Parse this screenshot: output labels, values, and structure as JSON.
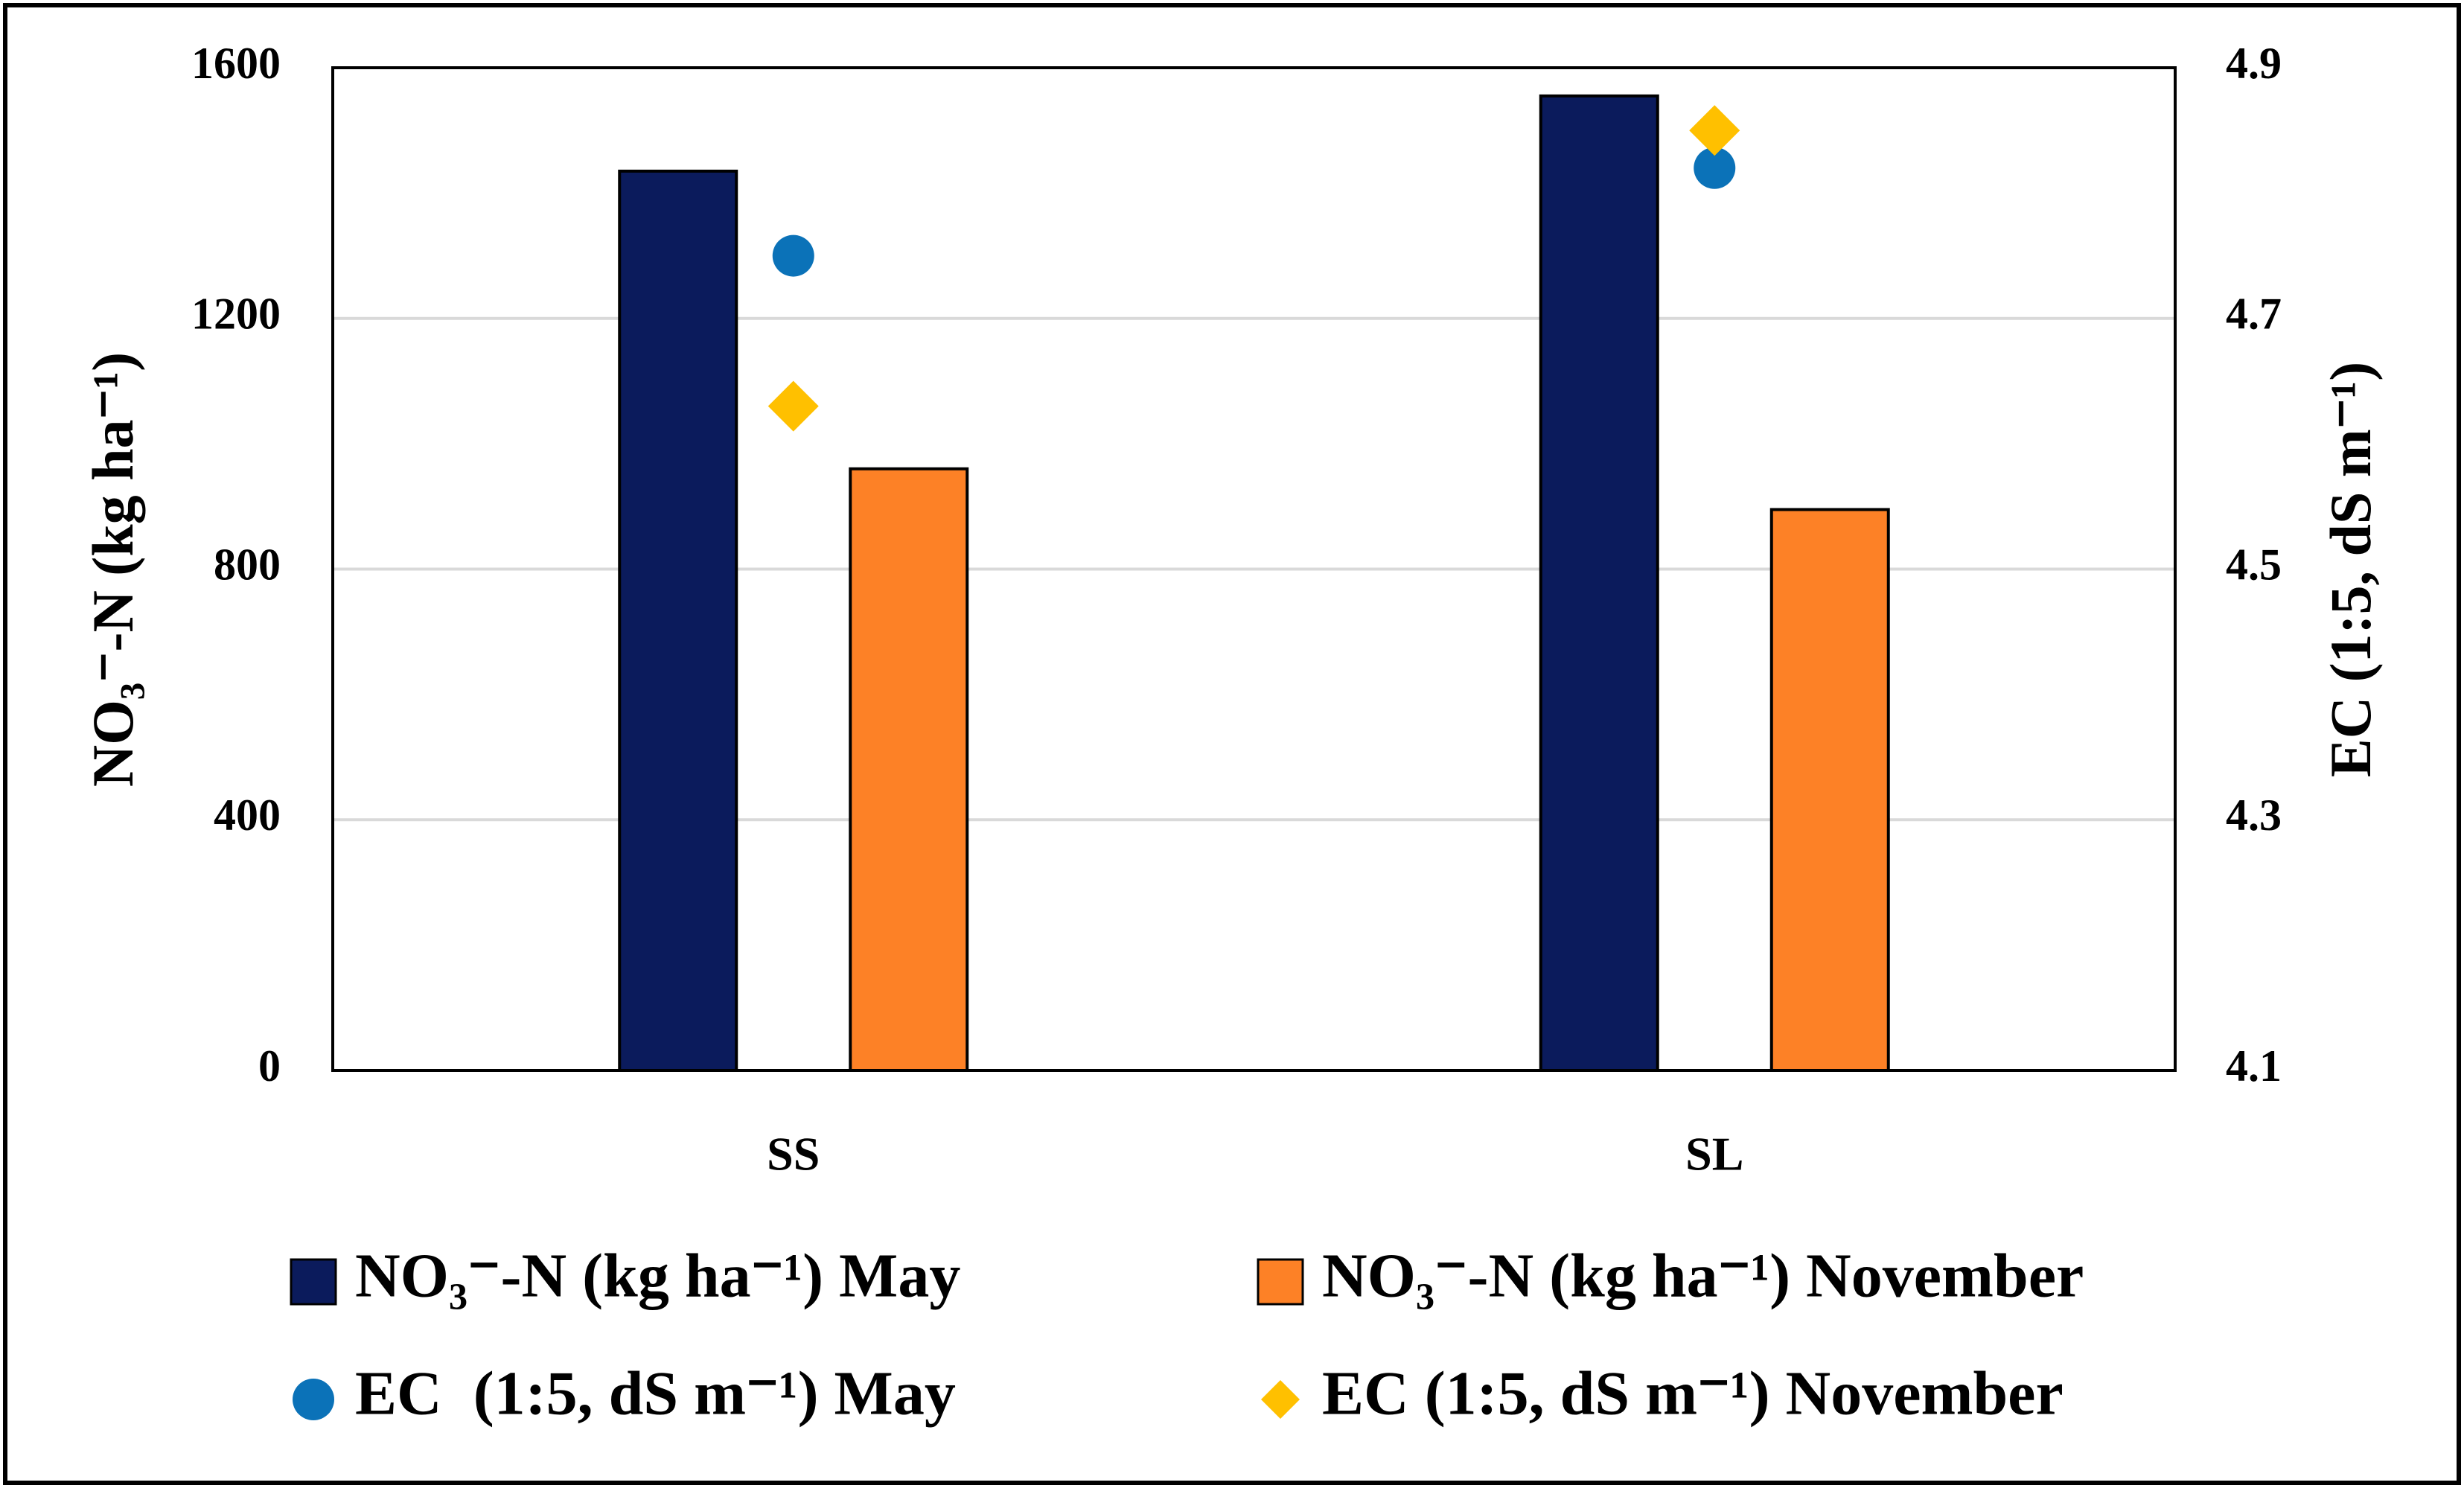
{
  "chart_data": {
    "type": "bar",
    "categories": [
      "SS",
      "SL"
    ],
    "y_label": "NO₃⁻-N (kg ha⁻¹)",
    "y2_label": "EC (1:5, dS m⁻¹)",
    "ylim": [
      0,
      1600
    ],
    "yticks": [
      0,
      400,
      800,
      1200,
      1600
    ],
    "y2lim": [
      4.1,
      4.9
    ],
    "y2ticks": [
      4.1,
      4.3,
      4.5,
      4.7,
      4.9
    ],
    "grid": true,
    "legend": "bottom",
    "series": [
      {
        "name": "NO₃⁻-N (kg ha⁻¹) May",
        "type": "bar",
        "color": "#0b1b5c",
        "values": [
          1435,
          1555
        ]
      },
      {
        "name": "NO₃⁻-N (kg ha⁻¹) November",
        "type": "bar",
        "color": "#fd8126",
        "values": [
          960,
          895
        ]
      },
      {
        "name": "EC  (1:5, dS m⁻¹) May",
        "type": "scatter",
        "marker": "circle",
        "axis": "y2",
        "color": "#0b72b8",
        "values": [
          4.75,
          4.82
        ]
      },
      {
        "name": "EC (1:5, dS m⁻¹) November",
        "type": "scatter",
        "marker": "diamond",
        "axis": "y2",
        "color": "#ffc000",
        "values": [
          4.63,
          4.85
        ]
      }
    ]
  }
}
